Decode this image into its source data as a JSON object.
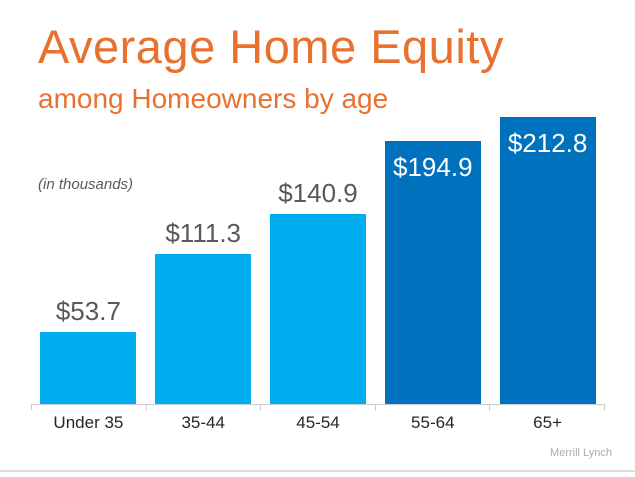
{
  "header": {
    "title": "Average Home Equity",
    "subtitle": "among Homeowners by age",
    "units_note": "(in thousands)"
  },
  "source": "Merrill Lynch",
  "colors": {
    "title_orange": "#E8712F",
    "bar_light_blue": "#00AEEF",
    "bar_dark_blue": "#0071BC",
    "value_label_gray": "#595959",
    "value_label_white": "#FFFFFF",
    "axis_line_gray": "#C8CBCE",
    "category_label_dark": "#262626",
    "source_gray": "#A7ACB5"
  },
  "chart_data": {
    "type": "bar",
    "title": "Average Home Equity among Homeowners by age",
    "units": "in thousands",
    "categories": [
      "Under 35",
      "35-44",
      "45-54",
      "55-64",
      "65+"
    ],
    "values": [
      53.7,
      111.3,
      140.9,
      194.9,
      212.8
    ],
    "value_labels": [
      "$53.7",
      "$111.3",
      "$140.9",
      "$194.9",
      "$212.8"
    ],
    "bar_styles": [
      "light",
      "light",
      "light",
      "dark",
      "dark"
    ],
    "label_positions": [
      "above",
      "above",
      "above",
      "inside",
      "inside"
    ],
    "xlabel": "",
    "ylabel": "",
    "ylim": [
      0,
      215
    ],
    "grid": false,
    "legend": false,
    "source": "Merrill Lynch"
  }
}
